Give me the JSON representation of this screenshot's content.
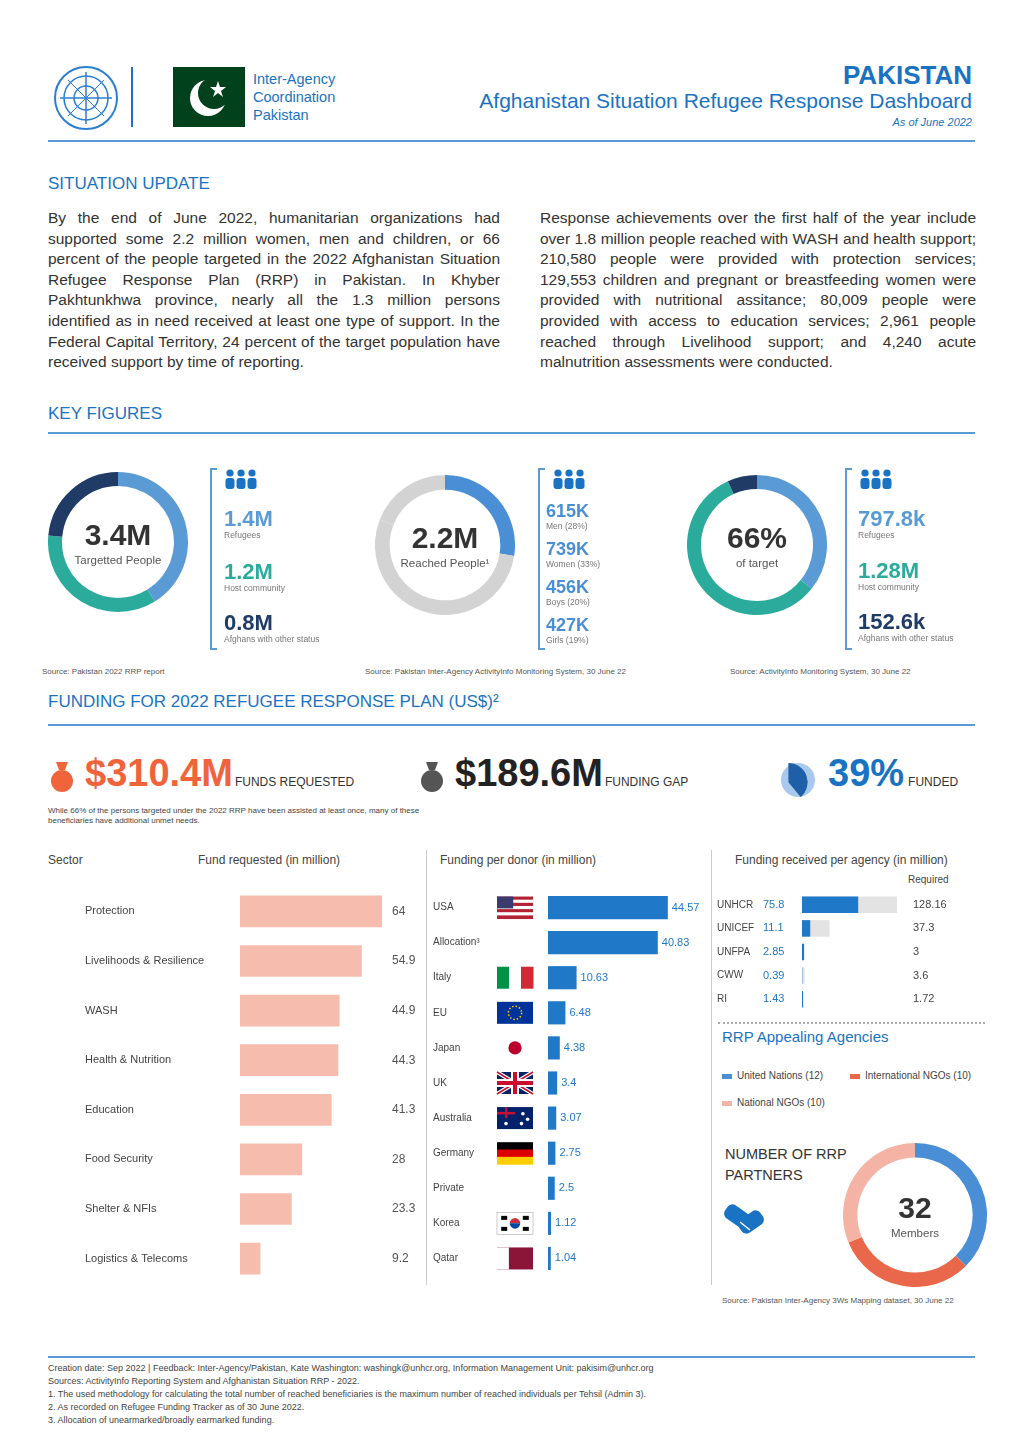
{
  "header": {
    "org": "Inter-Agency Coordination Pakistan",
    "country": "PAKISTAN",
    "title": "Afghanistan Situation Refugee Response Dashboard",
    "date": "As of June 2022"
  },
  "situation_update": {
    "title": "SITUATION UPDATE",
    "paragraphs": [
      "By the end of June 2022, humanitarian organizations had supported some 2.2 million women, men and children, or 66 percent of the people targeted in the 2022 Afghanistan Situation Refugee Response Plan (RRP) in Pakistan. In Khyber Pakhtunkhwa province, nearly all the 1.3 million persons identified as in need received at least one type of support. In the Federal Capital Territory, 24 percent of the target population have received support by time of reporting.",
      "Response achievements over the first half of the year include over 1.8 million people reached with WASH and health support; 210,580 people were provided with protection services; 129,553 children and pregnant or breastfeeding women were provided with nutritional assitance; 80,009 people were provided with access to education services; 2,961 people reached through Livelihood support; and 4,240 acute malnutrition assessments were conducted."
    ]
  },
  "key_figures": {
    "title": "KEY FIGURES"
  },
  "funding": {
    "title": "FUNDING FOR 2022 REFUGEE RESPONSE PLAN (US$)²",
    "requested": {
      "value": "$310.4M",
      "label": "FUNDS REQUESTED"
    },
    "gap": {
      "value": "$189.6M",
      "label": "FUNDING GAP"
    },
    "note": "While 66% of the persons targeted under the 2022 RRP have been assisted at least once, many of these beneficiaries have additional unmet needs."
  },
  "chart_data": [
    {
      "type": "doughnut",
      "center_text": "3.4M",
      "center_label": "Targetted People",
      "categories": [
        "Refugees",
        "Host community",
        "Afghans with other status"
      ],
      "values": [
        1.4,
        1.2,
        0.8
      ],
      "value_labels": [
        "1.4M",
        "1.2M",
        "0.8M"
      ],
      "colors": [
        "#5b9bd5",
        "#2bab9b",
        "#1f3b66"
      ],
      "source": "Source: Pakistan 2022 RRP report"
    },
    {
      "type": "doughnut",
      "center_text": "2.2M",
      "center_label": "Reached People¹",
      "categories": [
        "Men (28%)",
        "Women (33%)",
        "Boys (20%)",
        "Girls (19%)"
      ],
      "values": [
        615,
        739,
        456,
        427
      ],
      "value_labels": [
        "615K",
        "739K",
        "456K",
        "427K"
      ],
      "colors": [
        "#4a8fd6",
        "#d3d3d3",
        "#d3d3d3",
        "#d3d3d3"
      ],
      "source": "Source: Pakistan Inter-Agency ActivityInfo Monitoring System, 30 June 22"
    },
    {
      "type": "doughnut",
      "center_text": "66%",
      "center_label": "of target",
      "categories": [
        "Refugees",
        "Host community",
        "Afghans with other status"
      ],
      "values": [
        797.8,
        1280,
        152.6
      ],
      "value_labels": [
        "797.8k",
        "1.28M",
        "152.6k"
      ],
      "colors": [
        "#5b9bd5",
        "#2bab9b",
        "#1f3b66"
      ],
      "source": "Source: ActivityInfo Monitoring System, 30 June 22"
    },
    {
      "type": "pie",
      "title": "FUNDED",
      "values": [
        39
      ],
      "value_labels": [
        "39%"
      ],
      "color": "#1f5fa8"
    },
    {
      "type": "bar",
      "orientation": "horizontal",
      "title": "Fund requested (in million)",
      "ylabel": "Sector",
      "categories": [
        "Protection",
        "Livelihoods & Resilience",
        "WASH",
        "Health & Nutrition",
        "Education",
        "Food Security",
        "Shelter & NFIs",
        "Logistics & Telecoms"
      ],
      "values": [
        64,
        54.9,
        44.9,
        44.3,
        41.3,
        28,
        23.3,
        9.2
      ],
      "color": "#f6bcae",
      "xlim": [
        0,
        64
      ],
      "grid": false,
      "tick_labels": "y",
      "data_labels": true
    },
    {
      "type": "bar",
      "orientation": "horizontal",
      "title": "Funding per donor (in million)",
      "categories": [
        "USA",
        "Allocation³",
        "Italy",
        "EU",
        "Japan",
        "UK",
        "Australia",
        "Germany",
        "Private",
        "Korea",
        "Qatar"
      ],
      "values": [
        44.57,
        40.83,
        10.63,
        6.48,
        4.38,
        3.4,
        3.07,
        2.75,
        2.5,
        1.12,
        1.04
      ],
      "color": "#1f78c8",
      "xlim": [
        0,
        45
      ],
      "grid": false,
      "tick_labels": "y",
      "data_labels": true
    },
    {
      "type": "bar",
      "orientation": "horizontal",
      "title": "Funding received per agency (in million)",
      "categories": [
        "UNHCR",
        "UNICEF",
        "UNFPA",
        "CWW",
        "RI"
      ],
      "series": [
        {
          "color": "#1f78c8",
          "values": [
            75.8,
            11.1,
            2.85,
            0.39,
            1.43
          ]
        },
        {
          "name": "Required",
          "color": "#e3e3e3",
          "values": [
            128.16,
            37.3,
            3,
            3.6,
            1.72
          ]
        }
      ],
      "xlim": [
        0,
        128.16
      ],
      "grid": false,
      "tick_labels": "y",
      "data_labels": true
    },
    {
      "type": "doughnut",
      "title": "NUMBER OF RRP PARTNERS",
      "subtitle": "RRP Appealing Agencies",
      "center_text": "32",
      "center_label": "Members",
      "categories": [
        "United Nations (12)",
        "International NGOs (10)",
        "National NGOs (10)"
      ],
      "values": [
        12,
        10,
        10
      ],
      "colors": [
        "#4a8fd6",
        "#e9684b",
        "#f5b3a5"
      ],
      "source": "Source: Pakistan Inter-Agency 3Ws Mapping dataset, 30 June 22"
    }
  ],
  "footer": [
    "Creation date: Sep 2022 | Feedback: Inter-Agency/Pakistan, Kate Washington: washingk@unhcr.org, Information Management Unit: pakisim@unhcr.org",
    "Sources: ActivityInfo Reporting System and Afghanistan Situation RRP - 2022.",
    "1. The used methodology for calculating the total number of reached beneficiaries is the maximum number of reached individuals per Tehsil (Admin 3).",
    "2. As recorded on Refugee Funding Tracker as of 30 June 2022.",
    "3. Allocation of unearmarked/broadly earmarked funding."
  ]
}
